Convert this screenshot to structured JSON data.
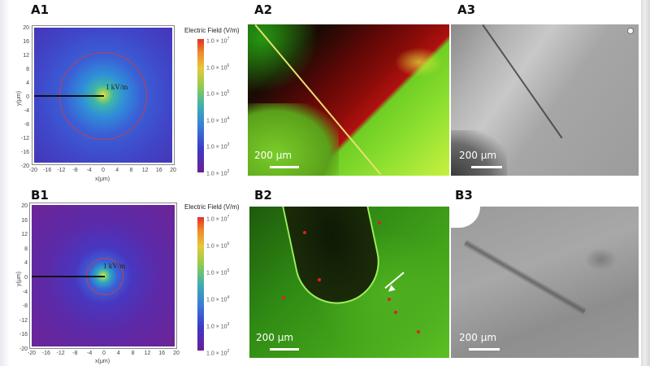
{
  "panels": {
    "A1": {
      "label": "A1",
      "annotation": "1 kV/m",
      "x_title": "x(μm)",
      "y_title": "y(μm)",
      "x_ticks": [
        "-20",
        "-16",
        "-12",
        "-8",
        "-4",
        "0",
        "4",
        "8",
        "12",
        "16",
        "20"
      ],
      "y_ticks": [
        "20",
        "16",
        "12",
        "8",
        "4",
        "0",
        "-4",
        "-8",
        "-12",
        "-16",
        "-20"
      ],
      "colorbar_title": "Electric Field (V/m)",
      "colorbar_ticks": [
        "1.0 × 10^7",
        "1.0 × 10^6",
        "1.0 × 10^5",
        "1.0 × 10^4",
        "1.0 × 10^3",
        "1.0 × 10^2"
      ]
    },
    "B1": {
      "label": "B1",
      "annotation": "1 kV/m",
      "x_title": "x(μm)",
      "y_title": "y(μm)",
      "x_ticks": [
        "-20",
        "-16",
        "-12",
        "-8",
        "-4",
        "0",
        "4",
        "8",
        "12",
        "16",
        "20"
      ],
      "y_ticks": [
        "20",
        "16",
        "12",
        "8",
        "4",
        "0",
        "-4",
        "-8",
        "-12",
        "-16",
        "-20"
      ],
      "colorbar_title": "Electric Field (V/m)",
      "colorbar_ticks": [
        "1.0 × 10^7",
        "1.0 × 10^6",
        "1.0 × 10^5",
        "1.0 × 10^4",
        "1.0 × 10^3",
        "1.0 × 10^2"
      ]
    },
    "A2": {
      "label": "A2",
      "scale": "200 μm"
    },
    "A3": {
      "label": "A3",
      "scale": "200 μm"
    },
    "B2": {
      "label": "B2",
      "scale": "200 μm"
    },
    "B3": {
      "label": "B3",
      "scale": "200 μm"
    }
  },
  "chart_data": [
    {
      "type": "heatmap",
      "title": "A1",
      "xlabel": "x(μm)",
      "ylabel": "y(μm)",
      "xlim": [
        -20,
        20
      ],
      "ylim": [
        -20,
        20
      ],
      "colorbar": {
        "label": "Electric Field (V/m)",
        "scale": "log",
        "range": [
          100,
          10000000
        ]
      },
      "annotations": [
        {
          "text": "1 kV/m",
          "contour_radius_um": 13
        }
      ],
      "electrode": {
        "from": [
          -20,
          0
        ],
        "to": [
          0,
          0
        ]
      }
    },
    {
      "type": "heatmap",
      "title": "B1",
      "xlabel": "x(μm)",
      "ylabel": "y(μm)",
      "xlim": [
        -20,
        20
      ],
      "ylim": [
        -20,
        20
      ],
      "colorbar": {
        "label": "Electric Field (V/m)",
        "scale": "log",
        "range": [
          100,
          10000000
        ]
      },
      "annotations": [
        {
          "text": "1 kV/m",
          "contour_radius_um": 5.5
        }
      ],
      "electrode": {
        "from": [
          -20,
          0
        ],
        "to": [
          0,
          0
        ]
      }
    }
  ]
}
